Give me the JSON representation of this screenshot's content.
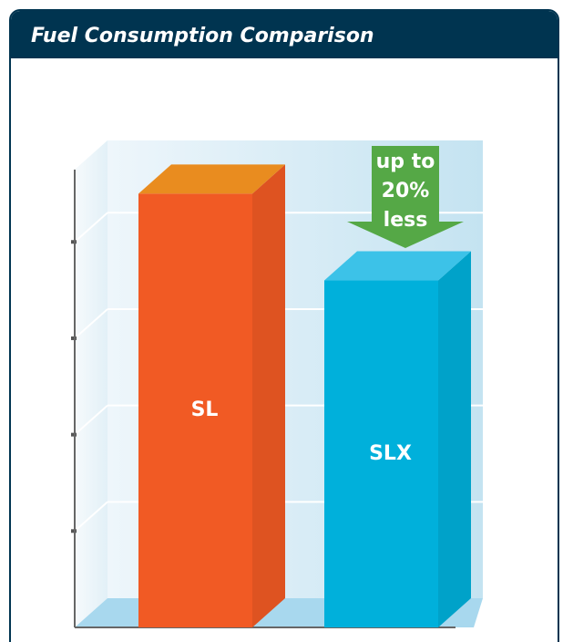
{
  "chart_data": {
    "type": "bar3d",
    "title": "Fuel Consumption Comparison",
    "categories": [
      "SL",
      "SLX"
    ],
    "values": [
      4.5,
      3.6
    ],
    "colors": [
      "#f15a24",
      "#00b0db"
    ],
    "ylim": [
      0,
      4.75
    ],
    "yticks": [
      1,
      2,
      3,
      4
    ],
    "annotation": [
      "up to",
      "20%",
      "less"
    ],
    "annotation_color": "#55a846"
  }
}
